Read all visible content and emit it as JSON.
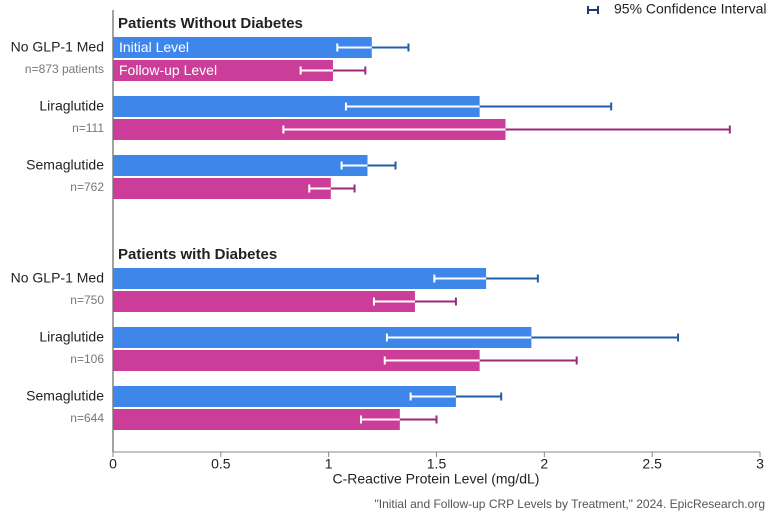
{
  "chart_data": {
    "type": "bar",
    "orientation": "horizontal",
    "x_label": "C-Reactive Protein Level (mg/dL)",
    "legend_label": "95% Confidence Interval",
    "source": "\"Initial and Follow-up CRP Levels by Treatment,\" 2024. EpicResearch.org",
    "xlim": [
      0,
      3
    ],
    "xticks": [
      0,
      0.5,
      1,
      1.5,
      2,
      2.5,
      3
    ],
    "series": [
      {
        "name": "Initial Level",
        "color": "#3f86ea",
        "ci_color": "#1f5fa8"
      },
      {
        "name": "Follow-up Level",
        "color": "#cc3d9a",
        "ci_color": "#9a2a7a"
      }
    ],
    "panels": [
      {
        "title": "Patients Without Diabetes",
        "categories": [
          "No GLP-1 Med",
          "Liraglutide",
          "Semaglutide"
        ],
        "sublabels": [
          "n=873 patients",
          "n=111",
          "n=762"
        ],
        "series": [
          {
            "values": [
              1.2,
              1.7,
              1.18
            ],
            "ci_low": [
              1.04,
              1.08,
              1.06
            ],
            "ci_high": [
              1.37,
              2.31,
              1.31
            ]
          },
          {
            "values": [
              1.02,
              1.82,
              1.01
            ],
            "ci_low": [
              0.87,
              0.79,
              0.91
            ],
            "ci_high": [
              1.17,
              2.86,
              1.12
            ]
          }
        ]
      },
      {
        "title": "Patients with Diabetes",
        "categories": [
          "No GLP-1 Med",
          "Liraglutide",
          "Semaglutide"
        ],
        "sublabels": [
          "n=750",
          "n=106",
          "n=644"
        ],
        "series": [
          {
            "values": [
              1.73,
              1.94,
              1.59
            ],
            "ci_low": [
              1.49,
              1.27,
              1.38
            ],
            "ci_high": [
              1.97,
              2.62,
              1.8
            ]
          },
          {
            "values": [
              1.4,
              1.7,
              1.33
            ],
            "ci_low": [
              1.21,
              1.26,
              1.15
            ],
            "ci_high": [
              1.59,
              2.15,
              1.5
            ]
          }
        ]
      }
    ]
  }
}
